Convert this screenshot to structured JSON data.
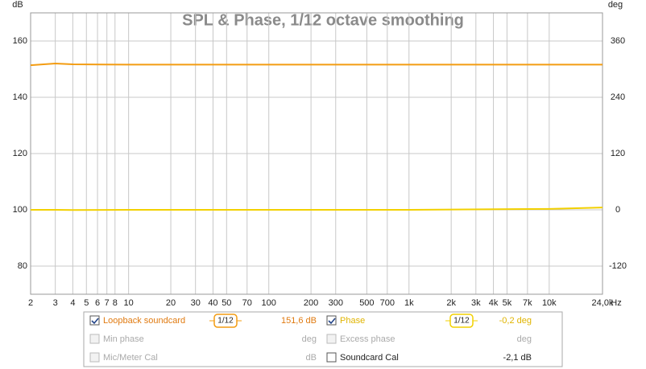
{
  "chart_data": {
    "type": "line",
    "title": "SPL & Phase, 1/12 octave smoothing",
    "y_unit": "dB",
    "y2_unit": "deg",
    "x_unit": "Hz",
    "xscale": "log",
    "grid": true,
    "xlim": [
      2,
      24000
    ],
    "ylim": [
      70,
      170
    ],
    "y2lim": [
      -180,
      420
    ],
    "xticks": [
      2,
      3,
      4,
      5,
      6,
      7,
      8,
      10,
      20,
      30,
      40,
      50,
      70,
      100,
      200,
      300,
      500,
      700,
      {
        "value": 1000,
        "label": "1k"
      },
      {
        "value": 2000,
        "label": "2k"
      },
      {
        "value": 3000,
        "label": "3k"
      },
      {
        "value": 4000,
        "label": "4k"
      },
      {
        "value": 5000,
        "label": "5k"
      },
      {
        "value": 7000,
        "label": "7k"
      },
      {
        "value": 10000,
        "label": "10k"
      },
      {
        "value": 24000,
        "label": "24,0k"
      }
    ],
    "yticks": [
      80,
      100,
      120,
      140,
      160
    ],
    "y2ticks": [
      -120,
      0,
      120,
      240,
      360
    ],
    "x": [
      2,
      3,
      4,
      10,
      100,
      1000,
      10000,
      24000
    ],
    "series": [
      {
        "name": "Loopback soundcard",
        "color": "#f39c12",
        "values": [
          151.4,
          152,
          151.7,
          151.6,
          151.6,
          151.6,
          151.6,
          151.6
        ]
      },
      {
        "name": "Phase",
        "color": "#f2d000",
        "axis": "y2",
        "values": [
          0,
          0,
          -0.5,
          0,
          0,
          0,
          2,
          5
        ]
      }
    ],
    "panel": {
      "smoothing": "1/12",
      "rows": [
        [
          {
            "checked": true,
            "series": 0,
            "readout": "151,6 dB"
          },
          {
            "checked": true,
            "series": 1,
            "readout": "-0,2 deg"
          }
        ],
        [
          {
            "checked": false,
            "label": "Min phase",
            "readout": "deg"
          },
          {
            "checked": false,
            "label": "Excess phase",
            "readout": "deg"
          }
        ],
        [
          {
            "checked": false,
            "label": "Mic/Meter Cal",
            "readout": "dB"
          },
          {
            "checked": false,
            "label": "Soundcard Cal",
            "readout": "-2,1 dB",
            "active": true
          }
        ]
      ]
    }
  }
}
